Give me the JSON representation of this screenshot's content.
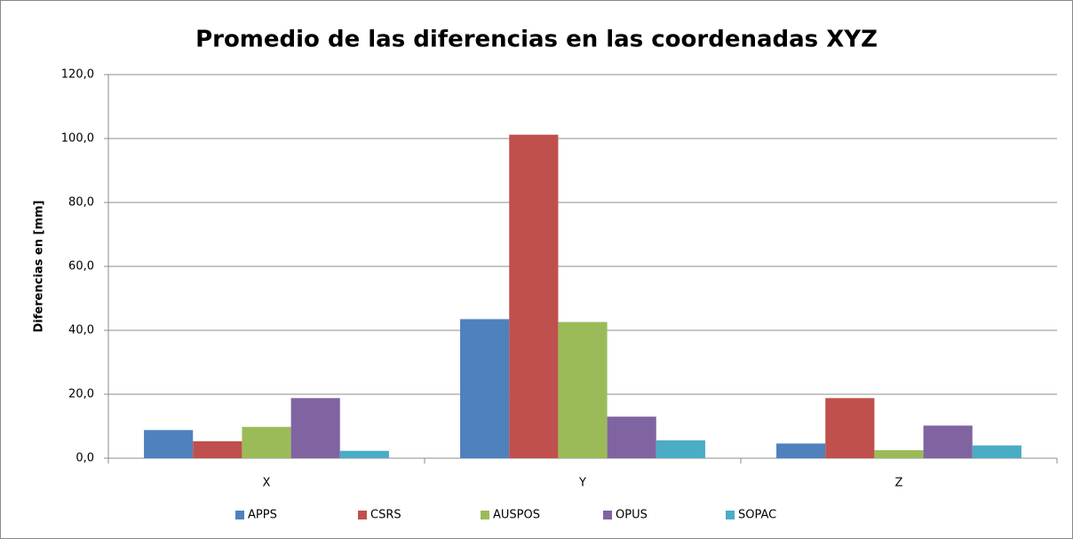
{
  "chart_data": {
    "type": "bar",
    "title": "Promedio de las diferencias en las coordenadas XYZ",
    "y_label": "Diferencias en [mm]",
    "categories": [
      "X",
      "Y",
      "Z"
    ],
    "series": [
      {
        "name": "APPS",
        "color": "#4f81bd",
        "values": [
          8.8,
          43.5,
          4.6
        ]
      },
      {
        "name": "CSRS",
        "color": "#c0504d",
        "values": [
          5.3,
          101.2,
          18.8
        ]
      },
      {
        "name": "AUSPOS",
        "color": "#9bbb59",
        "values": [
          9.8,
          42.6,
          2.5
        ]
      },
      {
        "name": "OPUS",
        "color": "#8064a2",
        "values": [
          18.8,
          13.0,
          10.2
        ]
      },
      {
        "name": "SOPAC",
        "color": "#4bacc6",
        "values": [
          2.3,
          5.6,
          4.0
        ]
      }
    ],
    "ylim": [
      0,
      120
    ],
    "yticks": [
      {
        "value": 0,
        "label": "0,0"
      },
      {
        "value": 20,
        "label": "20,0"
      },
      {
        "value": 40,
        "label": "40,0"
      },
      {
        "value": 60,
        "label": "60,0"
      },
      {
        "value": 80,
        "label": "80,0"
      },
      {
        "value": 100,
        "label": "100,0"
      },
      {
        "value": 120,
        "label": "120,0"
      }
    ],
    "grid": true,
    "legend": "bottom"
  }
}
